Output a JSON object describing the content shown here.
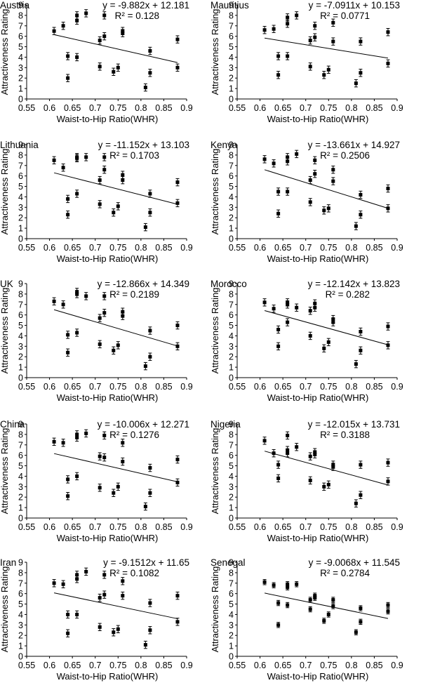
{
  "axis": {
    "xlabel": "Waist-to-Hip Ratio(WHR)",
    "ylabel": "Attractiveness Rating",
    "xlim": [
      0.55,
      0.9
    ],
    "ylim": [
      0,
      9
    ],
    "xticks": [
      "0.55",
      "0.6",
      "0.65",
      "0.7",
      "0.75",
      "0.8",
      "0.85",
      "0.9"
    ],
    "yticks": [
      "0",
      "1",
      "2",
      "3",
      "4",
      "5",
      "6",
      "7",
      "8",
      "9"
    ]
  },
  "chart_data": [
    {
      "type": "scatter",
      "title": "Austria",
      "equation": "y = -9.882x + 12.181",
      "r2": "R² = 0.128",
      "trend": {
        "slope": -9.882,
        "intercept": 12.181
      },
      "x": [
        0.61,
        0.63,
        0.64,
        0.64,
        0.66,
        0.66,
        0.66,
        0.68,
        0.71,
        0.71,
        0.72,
        0.72,
        0.74,
        0.75,
        0.76,
        0.76,
        0.81,
        0.82,
        0.82,
        0.88,
        0.88
      ],
      "y": [
        6.5,
        7.0,
        4.1,
        2.0,
        7.5,
        8.0,
        4.0,
        8.2,
        5.6,
        3.1,
        6.0,
        8.0,
        2.6,
        3.0,
        6.3,
        6.5,
        1.1,
        2.5,
        4.6,
        5.7,
        3.0
      ],
      "err": 0.35
    },
    {
      "type": "scatter",
      "title": "Mauritius",
      "equation": "y = -7.0911x + 10.153",
      "r2": "R² = 0.0771",
      "trend": {
        "slope": -7.0911,
        "intercept": 10.153
      },
      "x": [
        0.61,
        0.63,
        0.64,
        0.64,
        0.66,
        0.66,
        0.66,
        0.68,
        0.71,
        0.71,
        0.72,
        0.72,
        0.74,
        0.75,
        0.76,
        0.76,
        0.81,
        0.82,
        0.82,
        0.88,
        0.88
      ],
      "y": [
        6.6,
        6.7,
        4.1,
        2.3,
        7.2,
        7.8,
        4.1,
        8.0,
        5.6,
        3.1,
        5.9,
        7.0,
        2.3,
        2.8,
        5.5,
        7.3,
        1.5,
        2.5,
        5.5,
        6.4,
        3.4
      ],
      "err": 0.35
    },
    {
      "type": "scatter",
      "title": "Lithuania",
      "equation": "y = -11.152x + 13.103",
      "r2": "R² = 0.1703",
      "trend": {
        "slope": -11.152,
        "intercept": 13.103
      },
      "x": [
        0.61,
        0.63,
        0.64,
        0.64,
        0.66,
        0.66,
        0.66,
        0.68,
        0.71,
        0.71,
        0.72,
        0.72,
        0.74,
        0.75,
        0.76,
        0.76,
        0.81,
        0.82,
        0.82,
        0.88,
        0.88
      ],
      "y": [
        7.5,
        6.8,
        3.8,
        2.3,
        7.7,
        7.8,
        4.3,
        7.8,
        5.6,
        3.3,
        6.6,
        7.8,
        2.5,
        3.1,
        5.6,
        6.1,
        1.1,
        2.5,
        4.3,
        5.4,
        3.4
      ],
      "err": 0.35
    },
    {
      "type": "scatter",
      "title": "Kenya",
      "equation": "y = -13.661x + 14.927",
      "r2": "R² = 0.2506",
      "trend": {
        "slope": -13.661,
        "intercept": 14.927
      },
      "x": [
        0.61,
        0.63,
        0.64,
        0.64,
        0.66,
        0.66,
        0.66,
        0.68,
        0.71,
        0.71,
        0.72,
        0.72,
        0.74,
        0.75,
        0.76,
        0.76,
        0.81,
        0.82,
        0.82,
        0.88,
        0.88
      ],
      "y": [
        7.6,
        7.2,
        4.5,
        2.4,
        7.4,
        7.8,
        4.5,
        8.1,
        5.6,
        3.5,
        6.2,
        7.5,
        2.7,
        2.9,
        5.5,
        6.6,
        1.2,
        2.3,
        4.2,
        4.8,
        2.9
      ],
      "err": 0.35
    },
    {
      "type": "scatter",
      "title": "UK",
      "equation": "y = -12.866x + 14.349",
      "r2": "R² = 0.2189",
      "trend": {
        "slope": -12.866,
        "intercept": 14.349
      },
      "x": [
        0.61,
        0.63,
        0.64,
        0.64,
        0.66,
        0.66,
        0.66,
        0.68,
        0.71,
        0.71,
        0.72,
        0.72,
        0.74,
        0.75,
        0.76,
        0.76,
        0.81,
        0.82,
        0.82,
        0.88,
        0.88
      ],
      "y": [
        7.3,
        7.0,
        4.1,
        2.4,
        8.0,
        8.2,
        4.3,
        7.8,
        5.7,
        3.2,
        6.2,
        7.8,
        2.6,
        3.1,
        5.9,
        6.3,
        1.1,
        2.0,
        4.5,
        5.0,
        3.0
      ],
      "err": 0.35
    },
    {
      "type": "scatter",
      "title": "Morocco",
      "equation": "y = -12.142x + 13.823",
      "r2": "R² = 0.282",
      "trend": {
        "slope": -12.142,
        "intercept": 13.823
      },
      "x": [
        0.61,
        0.63,
        0.64,
        0.64,
        0.66,
        0.66,
        0.66,
        0.68,
        0.71,
        0.71,
        0.72,
        0.72,
        0.74,
        0.75,
        0.76,
        0.76,
        0.81,
        0.82,
        0.82,
        0.88,
        0.88
      ],
      "y": [
        7.2,
        6.6,
        4.6,
        3.0,
        7.0,
        7.2,
        5.3,
        6.7,
        6.4,
        4.0,
        6.7,
        7.1,
        2.8,
        3.4,
        5.3,
        5.6,
        1.3,
        2.6,
        4.4,
        4.9,
        3.1
      ],
      "err": 0.35
    },
    {
      "type": "scatter",
      "title": "China",
      "equation": "y = -10.006x + 12.271",
      "r2": "R² = 0.1276",
      "trend": {
        "slope": -10.006,
        "intercept": 12.271
      },
      "x": [
        0.61,
        0.63,
        0.64,
        0.64,
        0.66,
        0.66,
        0.66,
        0.68,
        0.71,
        0.71,
        0.72,
        0.72,
        0.74,
        0.75,
        0.76,
        0.76,
        0.81,
        0.82,
        0.82,
        0.88,
        0.88
      ],
      "y": [
        7.3,
        7.2,
        3.7,
        2.1,
        7.7,
        8.0,
        4.0,
        8.1,
        5.9,
        2.9,
        5.8,
        7.9,
        2.4,
        3.0,
        5.4,
        7.2,
        1.1,
        2.4,
        4.8,
        5.6,
        3.4
      ],
      "err": 0.35
    },
    {
      "type": "scatter",
      "title": "Nigeria",
      "equation": "y = -12.015x + 13.731",
      "r2": "R² = 0.3188",
      "trend": {
        "slope": -12.015,
        "intercept": 13.731
      },
      "x": [
        0.61,
        0.63,
        0.64,
        0.64,
        0.66,
        0.66,
        0.66,
        0.68,
        0.71,
        0.71,
        0.72,
        0.72,
        0.74,
        0.75,
        0.76,
        0.76,
        0.81,
        0.82,
        0.82,
        0.88,
        0.88
      ],
      "y": [
        7.4,
        6.2,
        5.1,
        3.8,
        6.2,
        7.9,
        6.5,
        6.8,
        5.9,
        3.6,
        6.1,
        6.3,
        3.0,
        3.2,
        4.9,
        5.1,
        1.4,
        2.2,
        5.1,
        5.3,
        3.5
      ],
      "err": 0.35
    },
    {
      "type": "scatter",
      "title": "Iran",
      "equation": "y = -9.1512x + 11.65",
      "r2": "R² = 0.1082",
      "trend": {
        "slope": -9.1512,
        "intercept": 11.65
      },
      "x": [
        0.61,
        0.63,
        0.64,
        0.64,
        0.66,
        0.66,
        0.66,
        0.68,
        0.71,
        0.71,
        0.72,
        0.72,
        0.74,
        0.75,
        0.76,
        0.76,
        0.81,
        0.82,
        0.82,
        0.88,
        0.88
      ],
      "y": [
        7.0,
        6.9,
        4.0,
        2.2,
        7.4,
        7.8,
        4.0,
        8.1,
        5.6,
        2.8,
        5.9,
        7.8,
        2.3,
        2.6,
        5.8,
        7.2,
        1.1,
        2.5,
        5.1,
        5.8,
        3.3
      ],
      "err": 0.35
    },
    {
      "type": "scatter",
      "title": "Senegal",
      "equation": "y = -9.0068x + 11.545",
      "r2": "R² = 0.2784",
      "trend": {
        "slope": -9.0068,
        "intercept": 11.545
      },
      "x": [
        0.61,
        0.63,
        0.64,
        0.64,
        0.66,
        0.66,
        0.66,
        0.68,
        0.71,
        0.71,
        0.72,
        0.72,
        0.74,
        0.75,
        0.76,
        0.76,
        0.81,
        0.82,
        0.82,
        0.88,
        0.88
      ],
      "y": [
        7.1,
        6.8,
        5.1,
        3.0,
        6.6,
        6.9,
        4.9,
        6.9,
        5.4,
        4.5,
        5.6,
        5.8,
        3.4,
        4.0,
        4.8,
        5.4,
        2.3,
        3.3,
        4.6,
        4.9,
        4.3
      ],
      "err": 0.25
    }
  ]
}
